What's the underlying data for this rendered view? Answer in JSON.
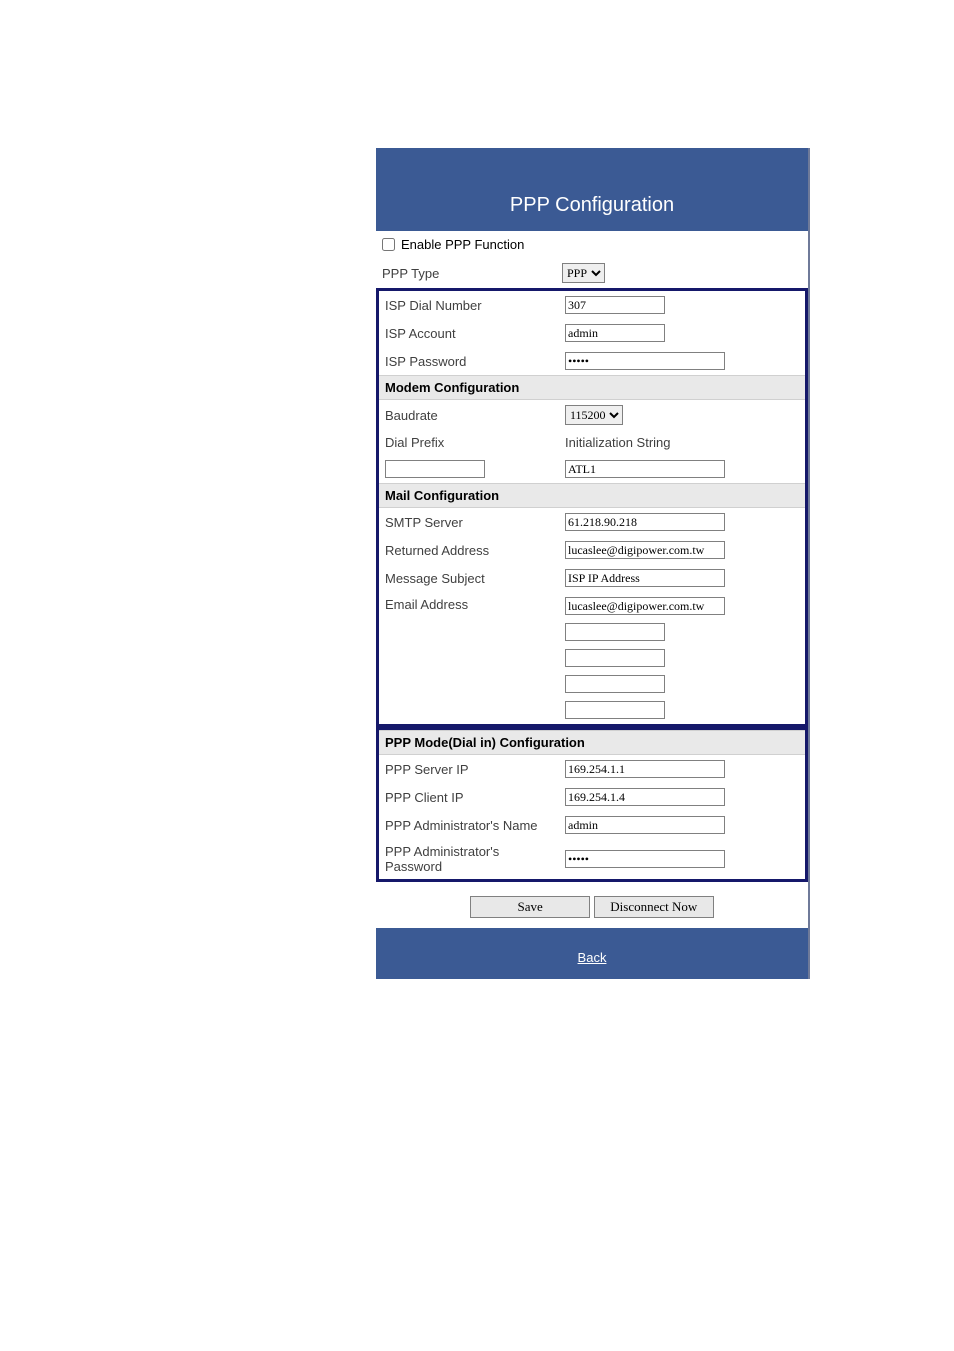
{
  "colors": {
    "header_bg": "#3b5a94",
    "box_border": "#15186a",
    "section_bg": "#e9e9e9",
    "text": "#404040",
    "white": "#ffffff"
  },
  "title": "PPP Configuration",
  "enable": {
    "label": "Enable PPP Function",
    "checked": false
  },
  "ppp_type": {
    "label": "PPP Type",
    "options": [
      "PPP"
    ],
    "value": "PPP"
  },
  "isp": {
    "dial_label": "ISP Dial Number",
    "dial_value": "307",
    "acct_label": "ISP Account",
    "acct_value": "admin",
    "pwd_label": "ISP Password",
    "pwd_value": "*****"
  },
  "modem": {
    "section": "Modem Configuration",
    "baud_label": "Baudrate",
    "baud_options": [
      "115200"
    ],
    "baud_value": "115200",
    "prefix_label": "Dial Prefix",
    "init_label": "Initialization String",
    "prefix_value": "",
    "init_value": "ATL1"
  },
  "mail": {
    "section": "Mail Configuration",
    "smtp_label": "SMTP Server",
    "smtp_value": "61.218.90.218",
    "ret_label": "Returned Address",
    "ret_value": "lucaslee@digipower.com.tw",
    "subj_label": "Message Subject",
    "subj_value": "ISP IP Address",
    "email_label": "Email Address",
    "email_values": [
      "lucaslee@digipower.com.tw",
      "",
      "",
      "",
      ""
    ]
  },
  "pppmode": {
    "section": "PPP Mode(Dial in) Configuration",
    "server_label": "PPP Server IP",
    "server_value": "169.254.1.1",
    "client_label": "PPP Client IP",
    "client_value": "169.254.1.4",
    "admin_name_label": "PPP Administrator's Name",
    "admin_name_value": "admin",
    "admin_pwd_label": "PPP Administrator's Password",
    "admin_pwd_value": "*****"
  },
  "buttons": {
    "save": "Save",
    "disconnect": "Disconnect Now"
  },
  "footer": {
    "back": "Back"
  }
}
